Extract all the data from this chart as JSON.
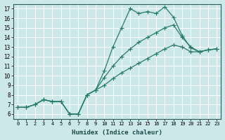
{
  "xlabel": "Humidex (Indice chaleur)",
  "background_color": "#cce8e8",
  "grid_color": "#aacccc",
  "line_color": "#2a7a6a",
  "xlim": [
    -0.5,
    23.5
  ],
  "ylim": [
    5.5,
    17.5
  ],
  "xticks": [
    0,
    1,
    2,
    3,
    4,
    5,
    6,
    7,
    8,
    9,
    10,
    11,
    12,
    13,
    14,
    15,
    16,
    17,
    18,
    19,
    20,
    21,
    22,
    23
  ],
  "yticks": [
    6,
    7,
    8,
    9,
    10,
    11,
    12,
    13,
    14,
    15,
    16,
    17
  ],
  "line1_x": [
    0,
    1,
    2,
    3,
    4,
    5,
    6,
    7,
    8,
    9,
    10,
    11,
    12,
    13,
    14,
    15,
    16,
    17,
    18,
    19,
    20,
    21,
    22,
    23
  ],
  "line1_y": [
    6.7,
    6.7,
    7.0,
    7.5,
    7.3,
    7.3,
    6.0,
    6.0,
    8.0,
    8.5,
    10.5,
    13.0,
    15.0,
    17.0,
    16.5,
    16.7,
    16.5,
    17.2,
    16.1,
    14.2,
    12.9,
    12.5,
    12.7,
    12.8
  ],
  "line2_x": [
    0,
    1,
    2,
    3,
    4,
    5,
    6,
    7,
    8,
    9,
    10,
    11,
    12,
    13,
    14,
    15,
    16,
    17,
    18,
    19,
    20,
    21,
    22,
    23
  ],
  "line2_y": [
    6.7,
    6.7,
    7.0,
    7.5,
    7.3,
    7.3,
    6.0,
    6.0,
    8.0,
    8.5,
    9.8,
    11.0,
    12.0,
    12.8,
    13.5,
    14.0,
    14.5,
    15.0,
    15.3,
    14.0,
    13.0,
    12.5,
    12.7,
    12.8
  ],
  "line3_x": [
    0,
    1,
    2,
    3,
    4,
    5,
    6,
    7,
    8,
    9,
    10,
    11,
    12,
    13,
    14,
    15,
    16,
    17,
    18,
    19,
    20,
    21,
    22,
    23
  ],
  "line3_y": [
    6.7,
    6.7,
    7.0,
    7.5,
    7.3,
    7.3,
    6.0,
    6.0,
    8.0,
    8.5,
    9.0,
    9.7,
    10.3,
    10.8,
    11.3,
    11.8,
    12.3,
    12.8,
    13.2,
    13.0,
    12.5,
    12.5,
    12.7,
    12.8
  ]
}
